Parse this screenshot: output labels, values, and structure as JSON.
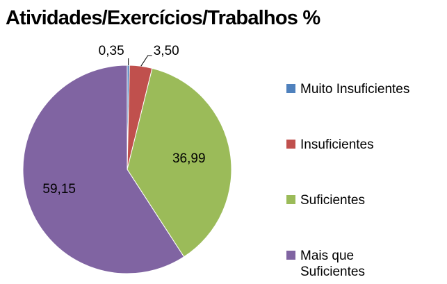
{
  "chart_data": {
    "type": "pie",
    "title": "Atividades/Exercícios/Trabalhos %",
    "categories": [
      "Muito Insuficientes",
      "Insuficientes",
      "Suficientes",
      "Mais que Suficientes"
    ],
    "values": [
      0.35,
      3.5,
      36.99,
      59.15
    ],
    "value_labels": [
      "0,35",
      "3,50",
      "36,99",
      "59,15"
    ],
    "colors": [
      "#4f81bd",
      "#c0504d",
      "#9bbb59",
      "#8064a2"
    ],
    "legend": "right"
  }
}
